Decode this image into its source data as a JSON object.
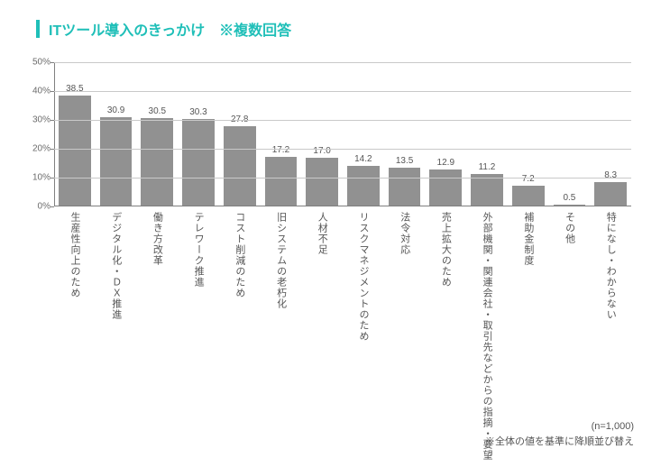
{
  "title": "ITツール導入のきっかけ　※複数回答",
  "chart": {
    "type": "bar",
    "ylabel_format_suffix": "%",
    "ylim": [
      0,
      50
    ],
    "ytick_step": 10,
    "bar_color": "#919191",
    "grid_color": "#c9c9c9",
    "axis_color": "#808080",
    "text_color": "#555555",
    "title_color": "#1fbfb8",
    "title_accent_color": "#1fbfb8",
    "background_color": "#ffffff",
    "bar_width_ratio": 0.78,
    "label_fontsize": 10,
    "category_fontsize": 11,
    "title_fontsize": 16,
    "categories": [
      "生産性向上のため",
      "デジタル化・ＤＸ推進",
      "働き方改革",
      "テレワーク推進",
      "コスト削減のため",
      "旧システムの老朽化",
      "人材不足",
      "リスクマネジメントのため",
      "法令対応",
      "売上拡大のため",
      "外部機関・関連会社・取引先などからの指摘・要望",
      "補助金制度",
      "その他",
      "特になし・わからない"
    ],
    "values": [
      38.5,
      30.9,
      30.5,
      30.3,
      27.8,
      17.2,
      17.0,
      14.2,
      13.5,
      12.9,
      11.2,
      7.2,
      0.5,
      8.3
    ]
  },
  "footnote": {
    "n_text": "(n=1,000)",
    "sort_text": "※全体の値を基準に降順並び替え"
  }
}
